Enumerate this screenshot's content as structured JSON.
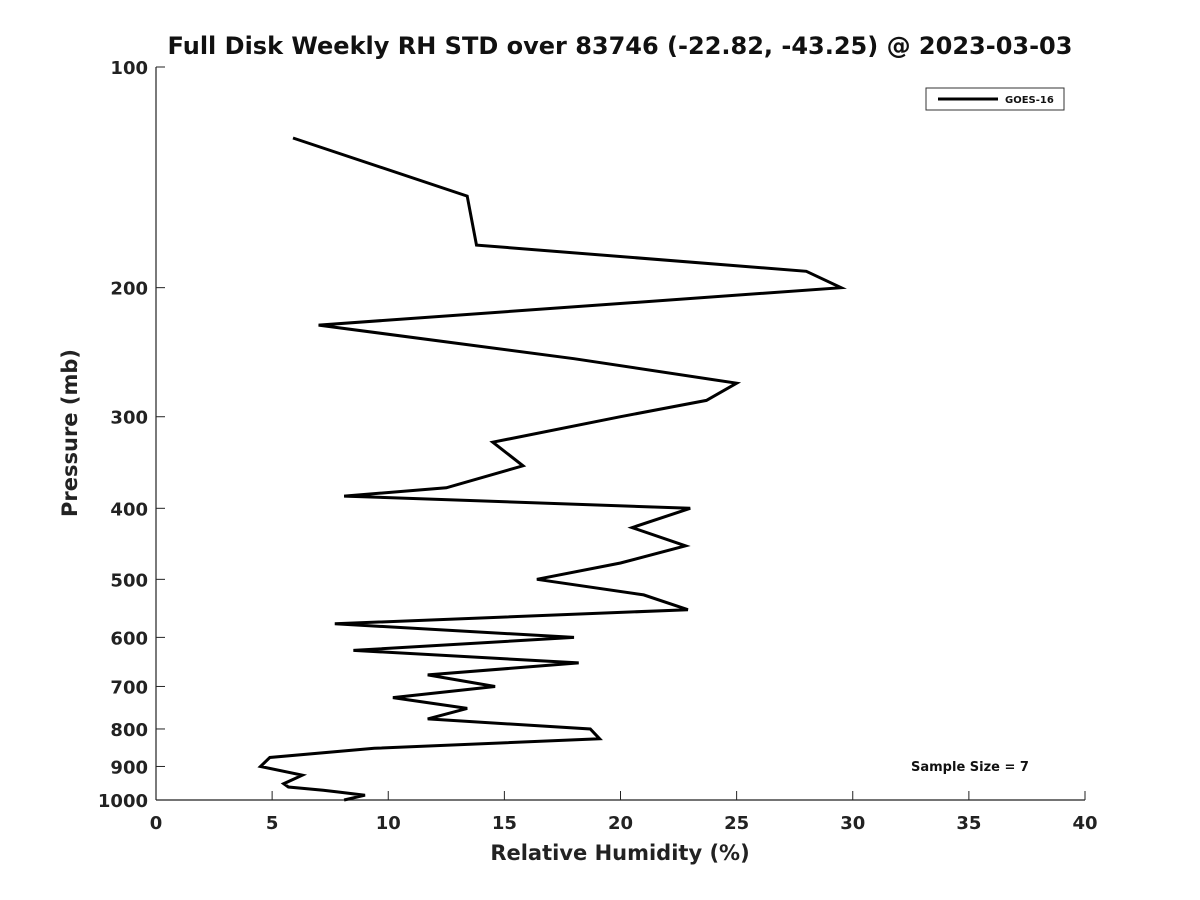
{
  "chart_data": {
    "type": "line",
    "title": "Full Disk Weekly RH STD over 83746 (-22.82, -43.25) @ 2023-03-03",
    "xlabel": "Relative Humidity (%)",
    "ylabel": "Pressure (mb)",
    "xlim": [
      0,
      40
    ],
    "ylim": [
      100,
      1000
    ],
    "y_scale": "log",
    "y_reversed": true,
    "xticks": [
      0,
      5,
      10,
      15,
      20,
      25,
      30,
      35,
      40
    ],
    "yticks": [
      100,
      200,
      300,
      400,
      500,
      600,
      700,
      800,
      900,
      1000
    ],
    "grid": false,
    "legend_position": "top-right",
    "annotation": "Sample Size = 7",
    "series": [
      {
        "name": "GOES-16",
        "color": "#000000",
        "x": [
          5.9,
          13.4,
          13.8,
          28.0,
          29.5,
          7.0,
          18.0,
          25.0,
          23.7,
          20.0,
          14.5,
          15.8,
          12.5,
          8.1,
          23.0,
          20.5,
          22.8,
          20.0,
          16.4,
          21.0,
          22.9,
          7.7,
          18.0,
          8.5,
          18.2,
          11.7,
          14.6,
          10.2,
          13.4,
          11.7,
          18.7,
          19.1,
          9.4,
          4.9,
          4.5,
          6.3,
          5.5,
          5.7,
          7.2,
          7.8,
          9.0,
          8.1
        ],
        "y": [
          125,
          150,
          175,
          190,
          200,
          225,
          250,
          270,
          285,
          300,
          325,
          350,
          375,
          385,
          400,
          425,
          450,
          475,
          500,
          525,
          550,
          575,
          600,
          625,
          650,
          675,
          700,
          725,
          750,
          775,
          800,
          825,
          850,
          875,
          900,
          925,
          950,
          960,
          970,
          975,
          985,
          1000
        ]
      }
    ]
  }
}
